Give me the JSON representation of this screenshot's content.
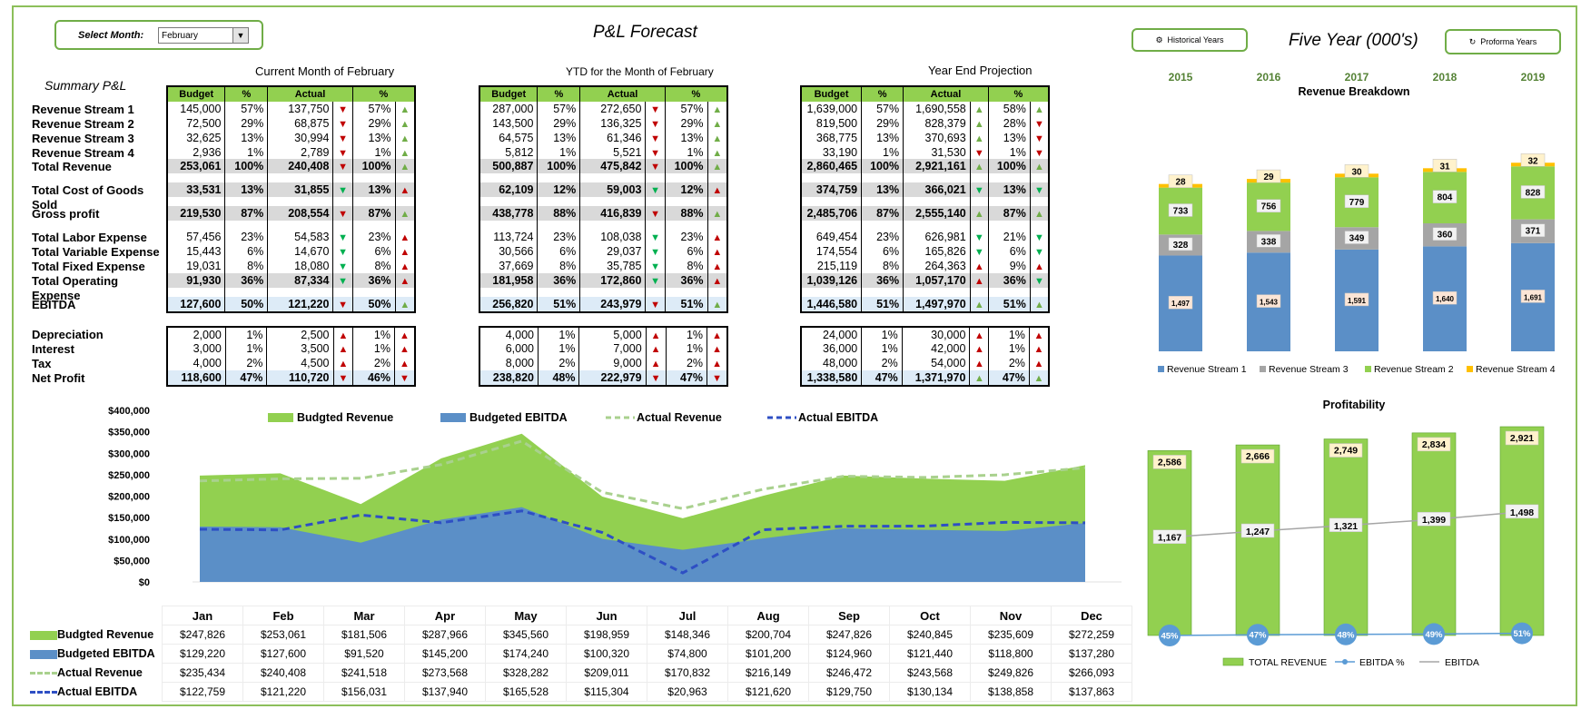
{
  "select_month": {
    "label": "Select Month:",
    "value": "February"
  },
  "title": "P&L Forecast",
  "section_titles": {
    "summary": "Summary P&L",
    "current": "Current Month of February",
    "ytd": "YTD for the Month of February",
    "year_end": "Year End Projection"
  },
  "buttons": {
    "historical": "Historical Years",
    "proforma": "Proforma Years"
  },
  "five_year_title": "Five  Year (000's)",
  "headers": [
    "Budget",
    "%",
    "Actual",
    "%"
  ],
  "row_labels": [
    "Revenue Stream 1",
    "Revenue Stream 2",
    "Revenue Stream 3",
    "Revenue Stream 4",
    "Total Revenue",
    "Total Cost of Goods Sold",
    "Gross profit",
    "Total Labor Expense",
    "Total Variable Expense",
    "Total Fixed Expense",
    "Total Operating Expense",
    "EBITDA",
    "Depreciation",
    "Interest",
    "Tax",
    "Net Profit"
  ],
  "tables": {
    "current": [
      [
        "145,000",
        "57%",
        "137,750",
        "dn",
        "57%",
        "up"
      ],
      [
        "72,500",
        "29%",
        "68,875",
        "dn",
        "29%",
        "up"
      ],
      [
        "32,625",
        "13%",
        "30,994",
        "dn",
        "13%",
        "up"
      ],
      [
        "2,936",
        "1%",
        "2,789",
        "dn",
        "1%",
        "up"
      ],
      [
        "253,061",
        "100%",
        "240,408",
        "dn",
        "100%",
        "up"
      ],
      [
        "33,531",
        "13%",
        "31,855",
        "dn2",
        "13%",
        "up2"
      ],
      [
        "219,530",
        "87%",
        "208,554",
        "dn",
        "87%",
        "up"
      ],
      [
        "57,456",
        "23%",
        "54,583",
        "dn2",
        "23%",
        "up2"
      ],
      [
        "15,443",
        "6%",
        "14,670",
        "dn2",
        "6%",
        "up2"
      ],
      [
        "19,031",
        "8%",
        "18,080",
        "dn2",
        "8%",
        "up2"
      ],
      [
        "91,930",
        "36%",
        "87,334",
        "dn2",
        "36%",
        "up2"
      ],
      [
        "127,600",
        "50%",
        "121,220",
        "dn",
        "50%",
        "up"
      ],
      [
        "2,000",
        "1%",
        "2,500",
        "up2",
        "1%",
        "up2"
      ],
      [
        "3,000",
        "1%",
        "3,500",
        "up2",
        "1%",
        "up2"
      ],
      [
        "4,000",
        "2%",
        "4,500",
        "up2",
        "2%",
        "up2"
      ],
      [
        "118,600",
        "47%",
        "110,720",
        "dn",
        "46%",
        "dn"
      ]
    ],
    "ytd": [
      [
        "287,000",
        "57%",
        "272,650",
        "dn",
        "57%",
        "up"
      ],
      [
        "143,500",
        "29%",
        "136,325",
        "dn",
        "29%",
        "up"
      ],
      [
        "64,575",
        "13%",
        "61,346",
        "dn",
        "13%",
        "up"
      ],
      [
        "5,812",
        "1%",
        "5,521",
        "dn",
        "1%",
        "up"
      ],
      [
        "500,887",
        "100%",
        "475,842",
        "dn",
        "100%",
        "up"
      ],
      [
        "62,109",
        "12%",
        "59,003",
        "dn2",
        "12%",
        "up2"
      ],
      [
        "438,778",
        "88%",
        "416,839",
        "dn",
        "88%",
        "up"
      ],
      [
        "113,724",
        "23%",
        "108,038",
        "dn2",
        "23%",
        "up2"
      ],
      [
        "30,566",
        "6%",
        "29,037",
        "dn2",
        "6%",
        "up2"
      ],
      [
        "37,669",
        "8%",
        "35,785",
        "dn2",
        "8%",
        "up2"
      ],
      [
        "181,958",
        "36%",
        "172,860",
        "dn2",
        "36%",
        "up2"
      ],
      [
        "256,820",
        "51%",
        "243,979",
        "dn",
        "51%",
        "up"
      ],
      [
        "4,000",
        "1%",
        "5,000",
        "up2",
        "1%",
        "up2"
      ],
      [
        "6,000",
        "1%",
        "7,000",
        "up2",
        "1%",
        "up2"
      ],
      [
        "8,000",
        "2%",
        "9,000",
        "up2",
        "2%",
        "up2"
      ],
      [
        "238,820",
        "48%",
        "222,979",
        "dn",
        "47%",
        "dn"
      ]
    ],
    "year_end": [
      [
        "1,639,000",
        "57%",
        "1,690,558",
        "up",
        "58%",
        "up"
      ],
      [
        "819,500",
        "29%",
        "828,379",
        "up",
        "28%",
        "dn"
      ],
      [
        "368,775",
        "13%",
        "370,693",
        "up",
        "13%",
        "dn"
      ],
      [
        "33,190",
        "1%",
        "31,530",
        "dn",
        "1%",
        "dn"
      ],
      [
        "2,860,465",
        "100%",
        "2,921,161",
        "up",
        "100%",
        "up"
      ],
      [
        "374,759",
        "13%",
        "366,021",
        "dn2",
        "13%",
        "dn2"
      ],
      [
        "2,485,706",
        "87%",
        "2,555,140",
        "up",
        "87%",
        "up"
      ],
      [
        "649,454",
        "23%",
        "626,981",
        "dn2",
        "21%",
        "dn2"
      ],
      [
        "174,554",
        "6%",
        "165,826",
        "dn2",
        "6%",
        "dn2"
      ],
      [
        "215,119",
        "8%",
        "264,363",
        "up2",
        "9%",
        "up2"
      ],
      [
        "1,039,126",
        "36%",
        "1,057,170",
        "up2",
        "36%",
        "dn2"
      ],
      [
        "1,446,580",
        "51%",
        "1,497,970",
        "up",
        "51%",
        "up"
      ],
      [
        "24,000",
        "1%",
        "30,000",
        "up2",
        "1%",
        "up2"
      ],
      [
        "36,000",
        "1%",
        "42,000",
        "up2",
        "1%",
        "up2"
      ],
      [
        "48,000",
        "2%",
        "54,000",
        "up2",
        "2%",
        "up2"
      ],
      [
        "1,338,580",
        "47%",
        "1,371,970",
        "up",
        "47%",
        "up"
      ]
    ]
  },
  "colors": {
    "green": "#92d050",
    "blue": "#5b8fc7",
    "gray": "#a5a5a5",
    "yellow": "#ffc000",
    "dash_green": "#a9d18e",
    "dash_blue": "#2e4fc4",
    "year_label": "#548235"
  },
  "chart_data": [
    {
      "type": "area",
      "categories": [
        "Jan",
        "Feb",
        "Mar",
        "Apr",
        "May",
        "Jun",
        "Jul",
        "Aug",
        "Sep",
        "Oct",
        "Nov",
        "Dec"
      ],
      "series": [
        {
          "name": "Budgted Revenue",
          "kind": "area",
          "values": [
            247826,
            253061,
            181506,
            287966,
            345560,
            198959,
            148346,
            200704,
            247826,
            240845,
            235609,
            272259
          ],
          "display": [
            "$247,826",
            "$253,061",
            "$181,506",
            "$287,966",
            "$345,560",
            "$198,959",
            "$148,346",
            "$200,704",
            "$247,826",
            "$240,845",
            "$235,609",
            "$272,259"
          ]
        },
        {
          "name": "Budgeted EBITDA",
          "kind": "area",
          "values": [
            129220,
            127600,
            91520,
            145200,
            174240,
            100320,
            74800,
            101200,
            124960,
            121440,
            118800,
            137280
          ],
          "display": [
            "$129,220",
            "$127,600",
            "$91,520",
            "$145,200",
            "$174,240",
            "$100,320",
            "$74,800",
            "$101,200",
            "$124,960",
            "$121,440",
            "$118,800",
            "$137,280"
          ]
        },
        {
          "name": "Actual Revenue",
          "kind": "dashed",
          "values": [
            235434,
            240408,
            241518,
            273568,
            328282,
            209011,
            170832,
            216149,
            246472,
            243568,
            249826,
            266093
          ],
          "display": [
            "$235,434",
            "$240,408",
            "$241,518",
            "$273,568",
            "$328,282",
            "$209,011",
            "$170,832",
            "$216,149",
            "$246,472",
            "$243,568",
            "$249,826",
            "$266,093"
          ]
        },
        {
          "name": "Actual EBITDA",
          "kind": "dashed",
          "values": [
            122759,
            121220,
            156031,
            137940,
            165528,
            115304,
            20963,
            121620,
            129750,
            130134,
            138858,
            137863
          ],
          "display": [
            "$122,759",
            "$121,220",
            "$156,031",
            "$137,940",
            "$165,528",
            "$115,304",
            "$20,963",
            "$121,620",
            "$129,750",
            "$130,134",
            "$138,858",
            "$137,863"
          ]
        }
      ],
      "ylim": [
        0,
        400000
      ],
      "yticks": [
        "$0",
        "$50,000",
        "$100,000",
        "$150,000",
        "$200,000",
        "$250,000",
        "$300,000",
        "$350,000",
        "$400,000"
      ],
      "legend": "top"
    },
    {
      "type": "bar",
      "stacked": true,
      "title": "Revenue Breakdown",
      "categories": [
        "2015",
        "2016",
        "2017",
        "2018",
        "2019"
      ],
      "series": [
        {
          "name": "Revenue Stream 1",
          "values": [
            1497,
            1543,
            1591,
            1640,
            1691
          ]
        },
        {
          "name": "Revenue Stream 3",
          "values": [
            328,
            338,
            349,
            360,
            371
          ]
        },
        {
          "name": "Revenue Stream 2",
          "values": [
            733,
            756,
            779,
            804,
            828
          ]
        },
        {
          "name": "Revenue Stream 4",
          "values": [
            28,
            29,
            30,
            31,
            32
          ]
        }
      ],
      "display": [
        [
          "1,497",
          "1,543",
          "1,591",
          "1,640",
          "1,691"
        ],
        [
          "328",
          "338",
          "349",
          "360",
          "371"
        ],
        [
          "733",
          "756",
          "779",
          "804",
          "828"
        ],
        [
          "28",
          "29",
          "30",
          "31",
          "32"
        ]
      ],
      "legend": "bottom"
    },
    {
      "type": "bar",
      "title": "Profitability",
      "categories": [
        "2015",
        "2016",
        "2017",
        "2018",
        "2019"
      ],
      "series": [
        {
          "name": "TOTAL REVENUE",
          "values": [
            2586,
            2666,
            2749,
            2834,
            2921
          ]
        },
        {
          "name": "EBITDA %",
          "values": [
            45,
            47,
            48,
            49,
            51
          ]
        },
        {
          "name": "EBITDA",
          "values": [
            1167,
            1247,
            1321,
            1399,
            1498
          ]
        }
      ],
      "display": [
        [
          "2,586",
          "2,666",
          "2,749",
          "2,834",
          "2,921"
        ],
        [
          "45%",
          "47%",
          "48%",
          "49%",
          "51%"
        ],
        [
          "1,167",
          "1,247",
          "1,321",
          "1,399",
          "1,498"
        ]
      ],
      "legend": "bottom"
    }
  ]
}
